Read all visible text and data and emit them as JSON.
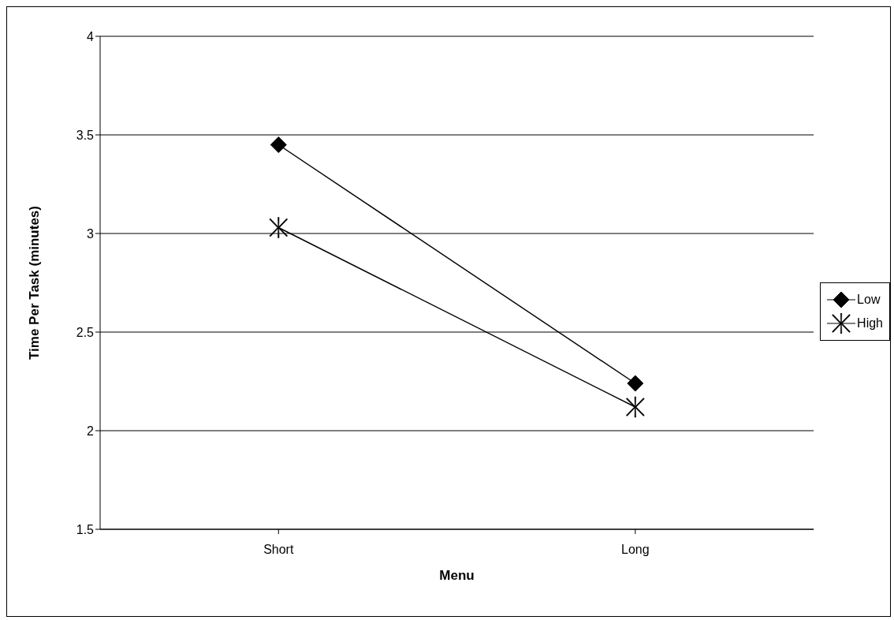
{
  "chart_data": {
    "type": "line",
    "xlabel": "Menu",
    "ylabel": "Time Per Task (minutes)",
    "categories": [
      "Short",
      "Long"
    ],
    "series": [
      {
        "name": "Low",
        "color": "#000000",
        "marker": "diamond",
        "values": [
          3.45,
          2.24
        ]
      },
      {
        "name": "High",
        "color": "#000000",
        "marker": "cross",
        "values": [
          3.03,
          2.12
        ]
      }
    ],
    "ylim": [
      1.5,
      4
    ],
    "yticks": [
      1.5,
      2,
      2.5,
      3,
      3.5,
      4
    ],
    "grid": "y",
    "legend": "right",
    "line_style": "solid"
  }
}
